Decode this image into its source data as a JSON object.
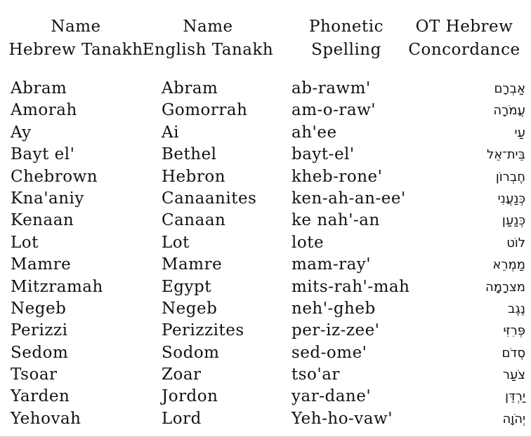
{
  "page": {
    "background_color": "#ffffff",
    "text_color": "#121212"
  },
  "table": {
    "headers": [
      {
        "line1": "Name",
        "line2": "Hebrew Tanakh"
      },
      {
        "line1": "Name",
        "line2": "English Tanakh"
      },
      {
        "line1": "Phonetic",
        "line2": "Spelling"
      },
      {
        "line1": "OT Hebrew",
        "line2": "Concordance"
      }
    ],
    "rows": [
      {
        "hebrew_name": "Abram",
        "english_name": "Abram",
        "phonetic": "ab-rawm'",
        "hebrew_script": "אַבְרָם"
      },
      {
        "hebrew_name": "Amorah",
        "english_name": "Gomorrah",
        "phonetic": "am-o-raw'",
        "hebrew_script": "עֲמֹרָה"
      },
      {
        "hebrew_name": "Ay",
        "english_name": "Ai",
        "phonetic": "ah'ee",
        "hebrew_script": "עַי"
      },
      {
        "hebrew_name": "Bayt el'",
        "english_name": "Bethel",
        "phonetic": "bayt-el'",
        "hebrew_script": "בֵּית־אֵל"
      },
      {
        "hebrew_name": "Chebrown",
        "english_name": "Hebron",
        "phonetic": "kheb-rone'",
        "hebrew_script": "חֶבְרוֹן"
      },
      {
        "hebrew_name": "Kna'aniy",
        "english_name": "Canaanites",
        "phonetic": "ken-ah-an-ee'",
        "hebrew_script": "כְּנַעֲנִי"
      },
      {
        "hebrew_name": "Kenaan",
        "english_name": "Canaan",
        "phonetic": "ke nah'-an",
        "hebrew_script": "כְּנַעַן"
      },
      {
        "hebrew_name": "Lot",
        "english_name": "Lot",
        "phonetic": "lote",
        "hebrew_script": "לוֹט"
      },
      {
        "hebrew_name": "Mamre",
        "english_name": "Mamre",
        "phonetic": "mam-ray'",
        "hebrew_script": "מַמְרֵא"
      },
      {
        "hebrew_name": "Mitzramah",
        "english_name": "Egypt",
        "phonetic": "mits-rah'-mah",
        "hebrew_script": "מצרָמָה"
      },
      {
        "hebrew_name": "Negeb",
        "english_name": "Negeb",
        "phonetic": "neh'-gheb",
        "hebrew_script": "נֶגֶב"
      },
      {
        "hebrew_name": "Perizzi",
        "english_name": "Perizzites",
        "phonetic": "per-iz-zee'",
        "hebrew_script": "פְּרִזִּי"
      },
      {
        "hebrew_name": "Sedom",
        "english_name": "Sodom",
        "phonetic": "sed-ome'",
        "hebrew_script": "סְדֹם"
      },
      {
        "hebrew_name": "Tsoar",
        "english_name": "Zoar",
        "phonetic": "tso'ar",
        "hebrew_script": "צֹעַר"
      },
      {
        "hebrew_name": "Yarden",
        "english_name": "Jordon",
        "phonetic": "yar-dane'",
        "hebrew_script": "יַרְדֵּן"
      },
      {
        "hebrew_name": "Yehovah",
        "english_name": "Lord",
        "phonetic": "Yeh-ho-vaw'",
        "hebrew_script": "יְהֹוָה"
      }
    ]
  }
}
